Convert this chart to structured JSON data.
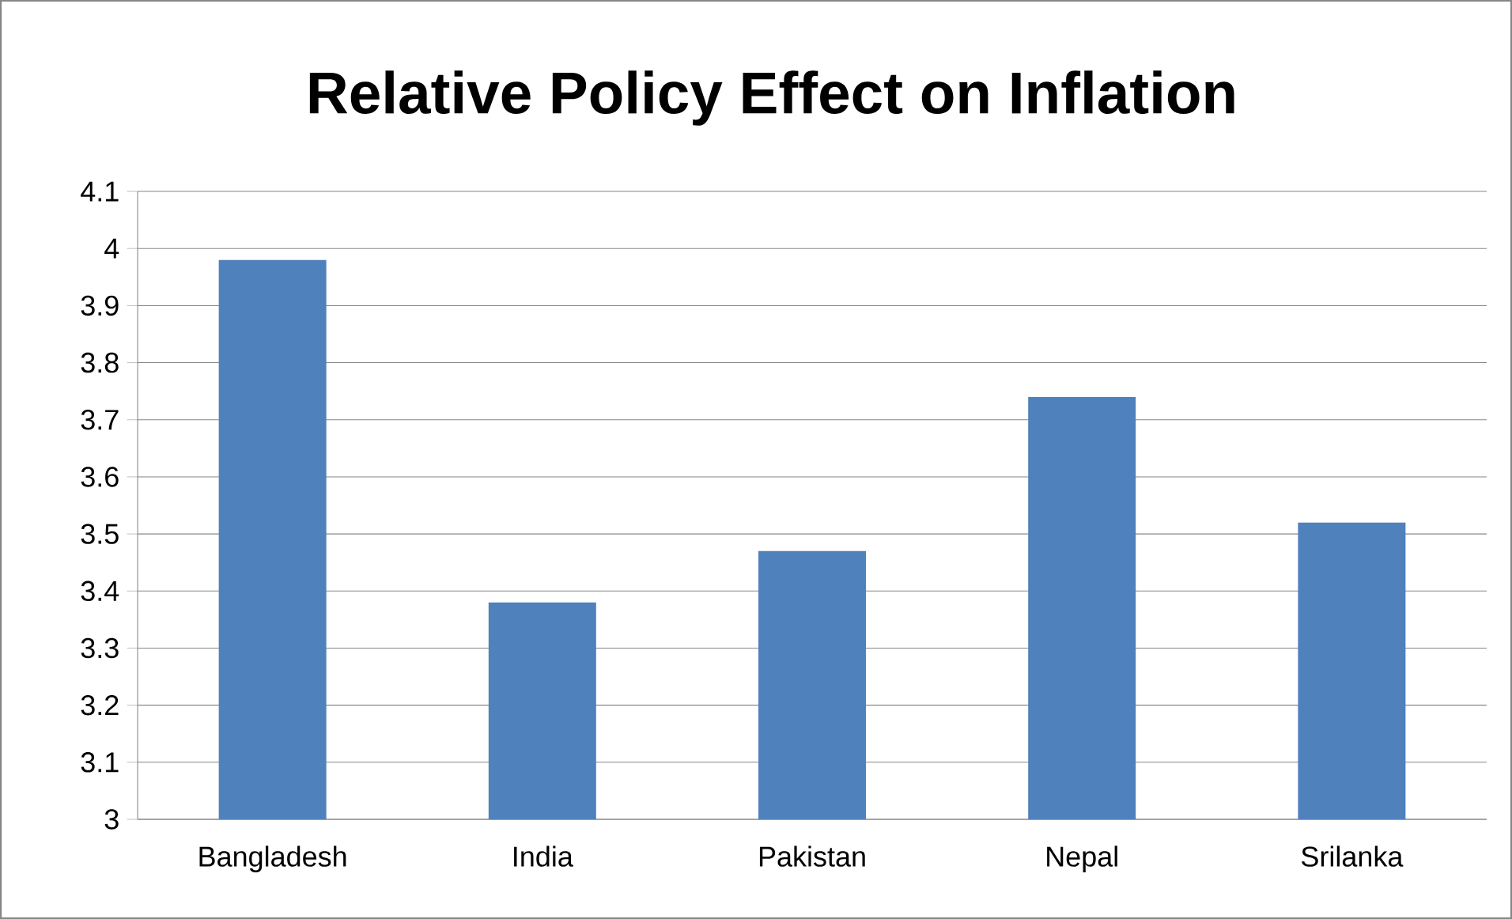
{
  "chart_data": {
    "type": "bar",
    "title": "Relative Policy Effect on Inflation",
    "categories": [
      "Bangladesh",
      "India",
      "Pakistan",
      "Nepal",
      "Srilanka"
    ],
    "values": [
      3.98,
      3.38,
      3.47,
      3.74,
      3.52
    ],
    "color": "#4f81bd",
    "ylim": [
      3,
      4.1
    ],
    "yticks": [
      3,
      3.1,
      3.2,
      3.3,
      3.4,
      3.5,
      3.6,
      3.7,
      3.8,
      3.9,
      4,
      4.1
    ],
    "grid": "y"
  }
}
